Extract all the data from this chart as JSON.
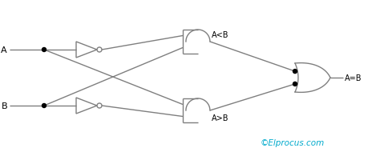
{
  "bg_color": "#ffffff",
  "line_color": "#7f7f7f",
  "dot_color": "#000000",
  "label_A": "A",
  "label_B": "B",
  "label_AltB": "A<B",
  "label_AgtB": "A>B",
  "label_AeqB": "A=B",
  "watermark": "©Elprocus.com",
  "watermark_color": "#00aacc",
  "fig_width": 4.74,
  "fig_height": 2.01
}
